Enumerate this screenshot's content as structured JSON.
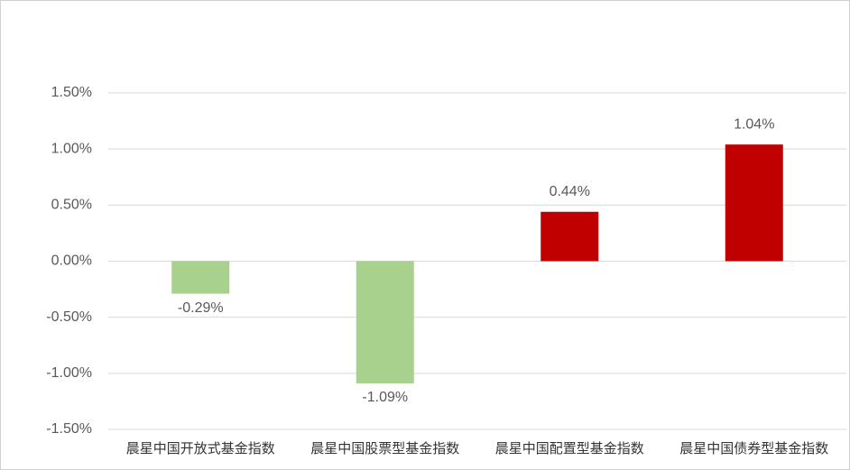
{
  "chart_data": {
    "type": "bar",
    "categories": [
      "晨星中国开放式基金指数",
      "晨星中国股票型基金指数",
      "晨星中国配置型基金指数",
      "晨星中国债券型基金指数"
    ],
    "values": [
      -0.29,
      -1.09,
      0.44,
      1.04
    ],
    "value_labels": [
      "-0.29%",
      "-1.09%",
      "0.44%",
      "1.04%"
    ],
    "colors": [
      "#a9d18e",
      "#a9d18e",
      "#c00000",
      "#c00000"
    ],
    "ylim": [
      -1.5,
      1.5
    ],
    "yticks": [
      {
        "value": -1.5,
        "label": "-1.50%"
      },
      {
        "value": -1.0,
        "label": "-1.00%"
      },
      {
        "value": -0.5,
        "label": "-0.50%"
      },
      {
        "value": 0,
        "label": "0.00%"
      },
      {
        "value": 0.5,
        "label": "0.50%"
      },
      {
        "value": 1.0,
        "label": "1.00%"
      },
      {
        "value": 1.5,
        "label": "1.50%"
      }
    ],
    "grid": true
  }
}
